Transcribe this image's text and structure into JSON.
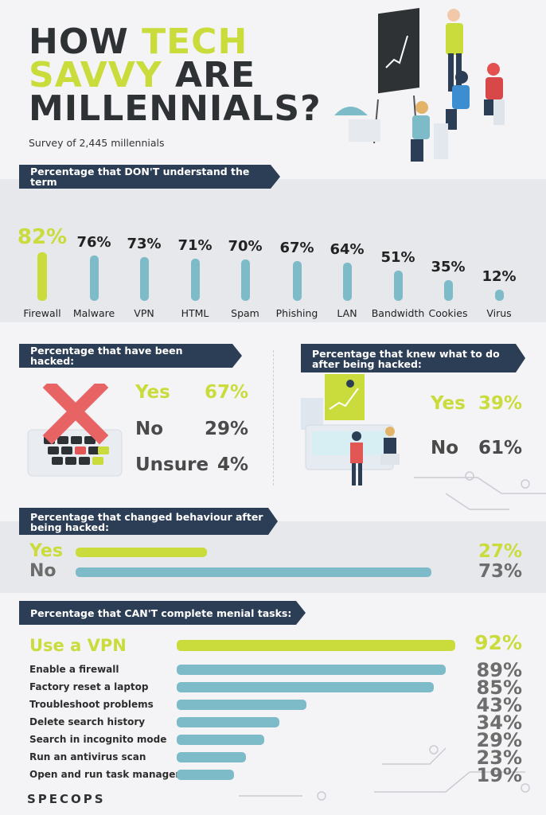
{
  "colors": {
    "accent": "#c9dc3c",
    "bar": "#7dbbc8",
    "navy": "#2c3e55",
    "text": "#2d2d2d"
  },
  "title": {
    "line1_a": "HOW ",
    "line1_b": "TECH",
    "line2_a": "SAVVY ",
    "line2_b": "ARE",
    "line3": "MILLENNIALS?"
  },
  "subtitle": "Survey of 2,445 millennials",
  "logo": "SPECOPS",
  "sections": {
    "dont_understand": "Percentage that DON'T understand the term",
    "hacked": "Percentage that have been hacked:",
    "knew": "Percentage that knew what to do after being hacked:",
    "changed": "Percentage that changed behaviour after being hacked:",
    "menial": "Percentage that CAN'T complete menial tasks:"
  },
  "chart_data": [
    {
      "type": "bar",
      "title": "Percentage that DON'T understand the term",
      "categories": [
        "Firewall",
        "Malware",
        "VPN",
        "HTML",
        "Spam",
        "Phishing",
        "LAN",
        "Bandwidth",
        "Cookies",
        "Virus"
      ],
      "values": [
        82,
        76,
        73,
        71,
        70,
        67,
        64,
        51,
        35,
        12
      ],
      "labels": [
        "82%",
        "76%",
        "73%",
        "71%",
        "70%",
        "67%",
        "64%",
        "51%",
        "35%",
        "12%"
      ]
    },
    {
      "type": "table",
      "title": "Percentage that have been hacked:",
      "categories": [
        "Yes",
        "No",
        "Unsure"
      ],
      "values": [
        67,
        29,
        4
      ],
      "labels": [
        "67%",
        "29%",
        "4%"
      ]
    },
    {
      "type": "table",
      "title": "Percentage that knew what to do after being hacked:",
      "categories": [
        "Yes",
        "No"
      ],
      "values": [
        39,
        61
      ],
      "labels": [
        "39%",
        "61%"
      ]
    },
    {
      "type": "bar",
      "title": "Percentage that changed behaviour after being hacked:",
      "categories": [
        "Yes",
        "No"
      ],
      "values": [
        27,
        73
      ],
      "labels": [
        "27%",
        "73%"
      ]
    },
    {
      "type": "bar",
      "title": "Percentage that CAN'T complete menial tasks:",
      "categories": [
        "Use a VPN",
        "Enable a firewall",
        "Factory reset a laptop",
        "Troubleshoot problems",
        "Delete search history",
        "Search in incognito mode",
        "Run an antivirus scan",
        "Open and run task managers"
      ],
      "values": [
        92,
        89,
        85,
        43,
        34,
        29,
        23,
        19
      ],
      "labels": [
        "92%",
        "89%",
        "85%",
        "43%",
        "34%",
        "29%",
        "23%",
        "19%"
      ]
    }
  ]
}
